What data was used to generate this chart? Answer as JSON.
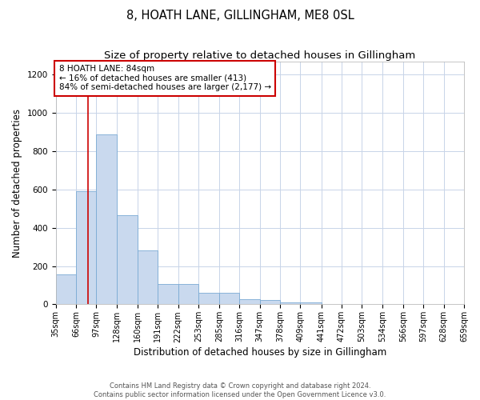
{
  "title": "8, HOATH LANE, GILLINGHAM, ME8 0SL",
  "subtitle": "Size of property relative to detached houses in Gillingham",
  "xlabel": "Distribution of detached houses by size in Gillingham",
  "ylabel": "Number of detached properties",
  "bins": [
    35,
    66,
    97,
    128,
    160,
    191,
    222,
    253,
    285,
    316,
    347,
    378,
    409,
    441,
    472,
    503,
    534,
    566,
    597,
    628,
    659
  ],
  "bar_heights": [
    155,
    590,
    890,
    465,
    280,
    105,
    105,
    60,
    60,
    25,
    22,
    12,
    10,
    0,
    0,
    0,
    0,
    0,
    0,
    0
  ],
  "bar_color": "#c9d9ee",
  "bar_edge_color": "#7aaad4",
  "property_line_x": 84,
  "property_line_color": "#cc0000",
  "annotation_text": "8 HOATH LANE: 84sqm\n← 16% of detached houses are smaller (413)\n84% of semi-detached houses are larger (2,177) →",
  "annotation_box_color": "#ffffff",
  "annotation_box_edge": "#cc0000",
  "ylim": [
    0,
    1270
  ],
  "yticks": [
    0,
    200,
    400,
    600,
    800,
    1000,
    1200
  ],
  "footer_line1": "Contains HM Land Registry data © Crown copyright and database right 2024.",
  "footer_line2": "Contains public sector information licensed under the Open Government Licence v3.0.",
  "background_color": "#ffffff",
  "grid_color": "#c8d4e8",
  "title_fontsize": 10.5,
  "subtitle_fontsize": 9.5,
  "tick_label_fontsize": 7,
  "ylabel_fontsize": 8.5,
  "xlabel_fontsize": 8.5,
  "annotation_fontsize": 7.5,
  "footer_fontsize": 6.0
}
